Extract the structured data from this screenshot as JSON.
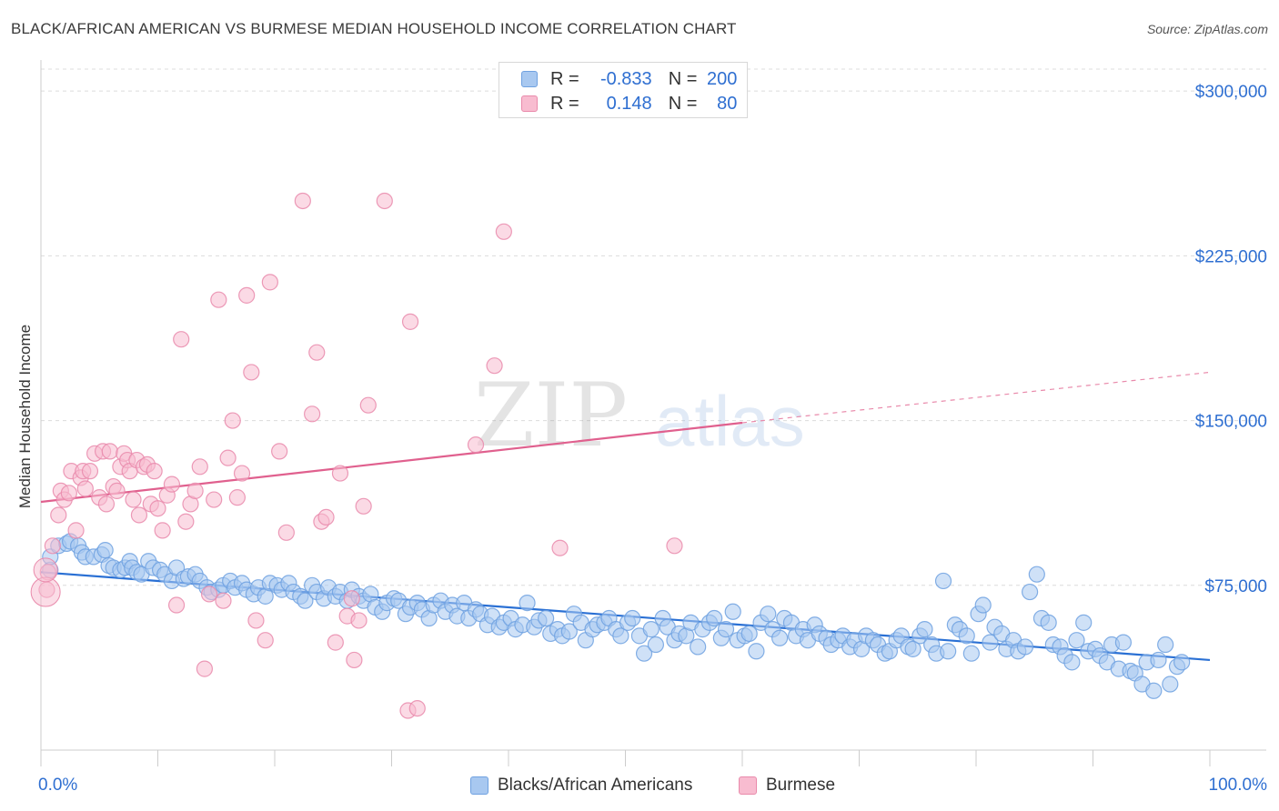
{
  "title": "BLACK/AFRICAN AMERICAN VS BURMESE MEDIAN HOUSEHOLD INCOME CORRELATION CHART",
  "source": "Source: ZipAtlas.com",
  "watermark": {
    "zip": "ZIP",
    "atlas": "atlas"
  },
  "legend": {
    "rows": [
      {
        "r_label": "R =",
        "r_value": "-0.833",
        "n_label": "N =",
        "n_value": "200",
        "color": "#a8c8f0",
        "border": "#6fa1e0"
      },
      {
        "r_label": "R =",
        "r_value": "0.148",
        "n_label": "N =",
        "n_value": "80",
        "color": "#f8bcd0",
        "border": "#e98aab"
      }
    ]
  },
  "bottom_legend": [
    {
      "label": "Blacks/African Americans",
      "color": "#a8c8f0",
      "border": "#6fa1e0"
    },
    {
      "label": "Burmese",
      "color": "#f8bcd0",
      "border": "#e98aab"
    }
  ],
  "chart_data": {
    "type": "scatter",
    "title": "BLACK/AFRICAN AMERICAN VS BURMESE MEDIAN HOUSEHOLD INCOME CORRELATION CHART",
    "xlabel": "",
    "ylabel": "Median Household Income",
    "xlim": [
      0,
      100
    ],
    "ylim": [
      0,
      310000
    ],
    "x_tick_labels": [
      "0.0%",
      "100.0%"
    ],
    "y_ticks": [
      75000,
      150000,
      225000,
      300000
    ],
    "y_tick_labels": [
      "$75,000",
      "$150,000",
      "$225,000",
      "$300,000"
    ],
    "grid": true,
    "legend_position": "top-center",
    "series": [
      {
        "name": "Blacks/African Americans",
        "color": "#6fa1e0",
        "fill": "#a8c8f0",
        "trend": {
          "x0": 0,
          "y0": 81000,
          "x1": 100,
          "y1": 41000
        },
        "points": [
          [
            0.8,
            82000
          ],
          [
            0.8,
            88000
          ],
          [
            1.5,
            93000
          ],
          [
            2.2,
            94000
          ],
          [
            2.5,
            95000
          ],
          [
            3.2,
            93000
          ],
          [
            3.5,
            90000
          ],
          [
            3.8,
            88000
          ],
          [
            4.5,
            88000
          ],
          [
            5.2,
            89000
          ],
          [
            5.5,
            91000
          ],
          [
            5.8,
            84000
          ],
          [
            6.2,
            83000
          ],
          [
            6.8,
            82000
          ],
          [
            7.2,
            83000
          ],
          [
            7.6,
            86000
          ],
          [
            7.8,
            83000
          ],
          [
            8.2,
            81000
          ],
          [
            8.6,
            80000
          ],
          [
            9.2,
            86000
          ],
          [
            9.6,
            83000
          ],
          [
            10.2,
            82000
          ],
          [
            10.6,
            80000
          ],
          [
            11.2,
            77000
          ],
          [
            11.6,
            83000
          ],
          [
            12.2,
            78000
          ],
          [
            12.6,
            79000
          ],
          [
            13.2,
            80000
          ],
          [
            13.6,
            77000
          ],
          [
            14.2,
            74000
          ],
          [
            14.6,
            72000
          ],
          [
            15.2,
            73000
          ],
          [
            15.6,
            75000
          ],
          [
            16.2,
            77000
          ],
          [
            16.6,
            74000
          ],
          [
            17.2,
            76000
          ],
          [
            17.6,
            73000
          ],
          [
            18.2,
            71000
          ],
          [
            18.6,
            74000
          ],
          [
            19.2,
            70000
          ],
          [
            19.6,
            76000
          ],
          [
            20.2,
            75000
          ],
          [
            20.6,
            73000
          ],
          [
            21.2,
            76000
          ],
          [
            21.6,
            72000
          ],
          [
            22.2,
            70000
          ],
          [
            22.6,
            68000
          ],
          [
            23.2,
            75000
          ],
          [
            23.6,
            72000
          ],
          [
            24.2,
            69000
          ],
          [
            24.6,
            74000
          ],
          [
            25.2,
            70000
          ],
          [
            25.6,
            72000
          ],
          [
            26.2,
            68000
          ],
          [
            26.6,
            73000
          ],
          [
            27.2,
            70000
          ],
          [
            27.6,
            68000
          ],
          [
            28.2,
            71000
          ],
          [
            28.6,
            65000
          ],
          [
            29.2,
            63000
          ],
          [
            29.6,
            67000
          ],
          [
            30.2,
            69000
          ],
          [
            30.6,
            68000
          ],
          [
            31.2,
            62000
          ],
          [
            31.6,
            65000
          ],
          [
            32.2,
            67000
          ],
          [
            32.6,
            64000
          ],
          [
            33.2,
            60000
          ],
          [
            33.6,
            66000
          ],
          [
            34.2,
            68000
          ],
          [
            34.6,
            63000
          ],
          [
            35.2,
            66000
          ],
          [
            35.6,
            61000
          ],
          [
            36.2,
            67000
          ],
          [
            36.6,
            60000
          ],
          [
            37.2,
            64000
          ],
          [
            37.6,
            62000
          ],
          [
            38.2,
            57000
          ],
          [
            38.6,
            61000
          ],
          [
            39.2,
            56000
          ],
          [
            39.6,
            58000
          ],
          [
            40.2,
            60000
          ],
          [
            40.6,
            55000
          ],
          [
            41.2,
            57000
          ],
          [
            41.6,
            67000
          ],
          [
            42.2,
            56000
          ],
          [
            42.6,
            59000
          ],
          [
            43.2,
            60000
          ],
          [
            43.6,
            53000
          ],
          [
            44.2,
            55000
          ],
          [
            44.6,
            52000
          ],
          [
            45.2,
            54000
          ],
          [
            45.6,
            62000
          ],
          [
            46.2,
            58000
          ],
          [
            46.6,
            50000
          ],
          [
            47.2,
            55000
          ],
          [
            47.6,
            57000
          ],
          [
            48.2,
            58000
          ],
          [
            48.6,
            60000
          ],
          [
            49.2,
            55000
          ],
          [
            49.6,
            52000
          ],
          [
            50.2,
            58000
          ],
          [
            50.6,
            60000
          ],
          [
            51.2,
            52000
          ],
          [
            51.6,
            44000
          ],
          [
            52.2,
            55000
          ],
          [
            52.6,
            48000
          ],
          [
            53.2,
            60000
          ],
          [
            53.6,
            56000
          ],
          [
            54.2,
            50000
          ],
          [
            54.6,
            53000
          ],
          [
            55.2,
            52000
          ],
          [
            55.6,
            58000
          ],
          [
            56.2,
            47000
          ],
          [
            56.6,
            55000
          ],
          [
            57.2,
            58000
          ],
          [
            57.6,
            60000
          ],
          [
            58.2,
            51000
          ],
          [
            58.6,
            55000
          ],
          [
            59.2,
            63000
          ],
          [
            59.6,
            50000
          ],
          [
            60.2,
            52000
          ],
          [
            60.6,
            53000
          ],
          [
            61.2,
            45000
          ],
          [
            61.6,
            58000
          ],
          [
            62.2,
            62000
          ],
          [
            62.6,
            55000
          ],
          [
            63.2,
            51000
          ],
          [
            63.6,
            60000
          ],
          [
            64.2,
            58000
          ],
          [
            64.6,
            52000
          ],
          [
            65.2,
            55000
          ],
          [
            65.6,
            50000
          ],
          [
            66.2,
            57000
          ],
          [
            66.6,
            53000
          ],
          [
            67.2,
            51000
          ],
          [
            67.6,
            48000
          ],
          [
            68.2,
            50000
          ],
          [
            68.6,
            52000
          ],
          [
            69.2,
            47000
          ],
          [
            69.6,
            50000
          ],
          [
            70.2,
            46000
          ],
          [
            70.6,
            52000
          ],
          [
            71.2,
            50000
          ],
          [
            71.6,
            48000
          ],
          [
            72.2,
            44000
          ],
          [
            72.6,
            45000
          ],
          [
            73.2,
            50000
          ],
          [
            73.6,
            52000
          ],
          [
            74.2,
            47000
          ],
          [
            74.6,
            46000
          ],
          [
            75.2,
            52000
          ],
          [
            75.6,
            55000
          ],
          [
            76.2,
            48000
          ],
          [
            76.6,
            44000
          ],
          [
            77.2,
            77000
          ],
          [
            77.6,
            45000
          ],
          [
            78.2,
            57000
          ],
          [
            78.6,
            55000
          ],
          [
            79.2,
            52000
          ],
          [
            79.6,
            44000
          ],
          [
            80.2,
            62000
          ],
          [
            80.6,
            66000
          ],
          [
            81.2,
            49000
          ],
          [
            81.6,
            56000
          ],
          [
            82.2,
            53000
          ],
          [
            82.6,
            46000
          ],
          [
            83.2,
            50000
          ],
          [
            83.6,
            45000
          ],
          [
            84.2,
            47000
          ],
          [
            84.6,
            72000
          ],
          [
            85.2,
            80000
          ],
          [
            85.6,
            60000
          ],
          [
            86.2,
            58000
          ],
          [
            86.6,
            48000
          ],
          [
            87.2,
            47000
          ],
          [
            87.6,
            43000
          ],
          [
            88.2,
            40000
          ],
          [
            88.6,
            50000
          ],
          [
            89.2,
            58000
          ],
          [
            89.6,
            45000
          ],
          [
            90.2,
            46000
          ],
          [
            90.6,
            43000
          ],
          [
            91.2,
            40000
          ],
          [
            91.6,
            48000
          ],
          [
            92.2,
            37000
          ],
          [
            92.6,
            49000
          ],
          [
            93.2,
            36000
          ],
          [
            93.6,
            35000
          ],
          [
            94.2,
            30000
          ],
          [
            94.6,
            40000
          ],
          [
            95.2,
            27000
          ],
          [
            95.6,
            41000
          ],
          [
            96.2,
            48000
          ],
          [
            96.6,
            30000
          ],
          [
            97.2,
            38000
          ],
          [
            97.6,
            40000
          ]
        ]
      },
      {
        "name": "Burmese",
        "color": "#e98aab",
        "fill": "#f8bcd0",
        "trend": {
          "x0": 0,
          "y0": 113000,
          "x1": 60,
          "y1": 149000,
          "dashed_to_x": 100,
          "dashed_to_y": 172000
        },
        "points": [
          [
            0.5,
            73000
          ],
          [
            0.6,
            81000
          ],
          [
            1.0,
            93000
          ],
          [
            1.5,
            107000
          ],
          [
            1.7,
            118000
          ],
          [
            2.0,
            114000
          ],
          [
            2.4,
            117000
          ],
          [
            2.6,
            127000
          ],
          [
            3.0,
            100000
          ],
          [
            3.4,
            124000
          ],
          [
            3.6,
            127000
          ],
          [
            3.8,
            119000
          ],
          [
            4.2,
            127000
          ],
          [
            4.6,
            135000
          ],
          [
            5.0,
            115000
          ],
          [
            5.3,
            136000
          ],
          [
            5.6,
            112000
          ],
          [
            5.9,
            136000
          ],
          [
            6.2,
            120000
          ],
          [
            6.5,
            118000
          ],
          [
            6.8,
            129000
          ],
          [
            7.1,
            135000
          ],
          [
            7.4,
            132000
          ],
          [
            7.6,
            127000
          ],
          [
            7.9,
            114000
          ],
          [
            8.2,
            132000
          ],
          [
            8.4,
            107000
          ],
          [
            8.8,
            129000
          ],
          [
            9.1,
            130000
          ],
          [
            9.4,
            112000
          ],
          [
            9.7,
            127000
          ],
          [
            10.0,
            110000
          ],
          [
            10.4,
            100000
          ],
          [
            10.8,
            116000
          ],
          [
            11.2,
            121000
          ],
          [
            11.6,
            66000
          ],
          [
            12.0,
            187000
          ],
          [
            12.4,
            104000
          ],
          [
            12.8,
            112000
          ],
          [
            13.2,
            118000
          ],
          [
            13.6,
            129000
          ],
          [
            14.0,
            37000
          ],
          [
            14.4,
            71000
          ],
          [
            14.8,
            114000
          ],
          [
            15.2,
            205000
          ],
          [
            15.6,
            68000
          ],
          [
            16.0,
            133000
          ],
          [
            16.4,
            150000
          ],
          [
            16.8,
            115000
          ],
          [
            17.2,
            126000
          ],
          [
            17.6,
            207000
          ],
          [
            18.0,
            172000
          ],
          [
            18.4,
            59000
          ],
          [
            19.2,
            50000
          ],
          [
            19.6,
            213000
          ],
          [
            20.4,
            136000
          ],
          [
            21.0,
            99000
          ],
          [
            22.4,
            250000
          ],
          [
            23.2,
            153000
          ],
          [
            23.6,
            181000
          ],
          [
            24.0,
            104000
          ],
          [
            24.4,
            106000
          ],
          [
            25.2,
            49000
          ],
          [
            25.6,
            126000
          ],
          [
            26.2,
            61000
          ],
          [
            26.6,
            69000
          ],
          [
            26.8,
            41000
          ],
          [
            27.2,
            59000
          ],
          [
            27.6,
            111000
          ],
          [
            28.0,
            157000
          ],
          [
            29.4,
            250000
          ],
          [
            31.4,
            18000
          ],
          [
            31.6,
            195000
          ],
          [
            32.2,
            19000
          ],
          [
            37.2,
            139000
          ],
          [
            38.8,
            175000
          ],
          [
            39.6,
            236000
          ],
          [
            44.4,
            92000
          ],
          [
            54.2,
            93000
          ]
        ]
      }
    ]
  }
}
